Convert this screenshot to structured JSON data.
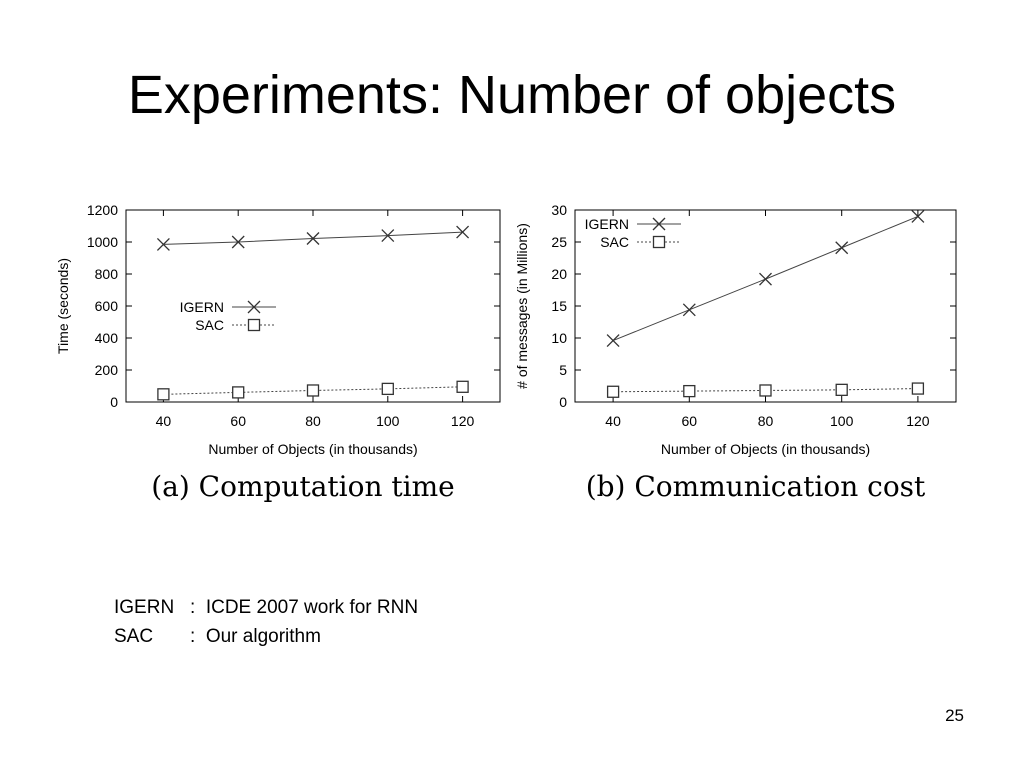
{
  "slide": {
    "title": "Experiments: Number of objects",
    "page_number": "25"
  },
  "notes": [
    {
      "term": "IGERN",
      "desc": ":  ICDE 2007 work for RNN"
    },
    {
      "term": "SAC",
      "desc": ":  Our algorithm"
    }
  ],
  "colors": {
    "series_line": "#444444",
    "marker": "#333333"
  },
  "chart_data": [
    {
      "type": "line",
      "caption": "(a) Computation time",
      "xlabel": "Number of Objects (in thousands)",
      "ylabel": "Time (seconds)",
      "x": [
        40,
        60,
        80,
        100,
        120
      ],
      "xlim": [
        30,
        130
      ],
      "ylim": [
        0,
        1200
      ],
      "xticks": [
        40,
        60,
        80,
        100,
        120
      ],
      "yticks": [
        0,
        200,
        400,
        600,
        800,
        1000,
        1200
      ],
      "legend_position": "center-left",
      "series": [
        {
          "name": "IGERN",
          "marker": "x",
          "line": "solid",
          "values": [
            985,
            1000,
            1022,
            1040,
            1062
          ]
        },
        {
          "name": "SAC",
          "marker": "square",
          "line": "dotted",
          "values": [
            48,
            60,
            72,
            82,
            95
          ]
        }
      ]
    },
    {
      "type": "line",
      "caption": "(b) Communication cost",
      "xlabel": "Number of Objects (in thousands)",
      "ylabel": "# of messages (in Millions)",
      "x": [
        40,
        60,
        80,
        100,
        120
      ],
      "xlim": [
        30,
        130
      ],
      "ylim": [
        0,
        30
      ],
      "xticks": [
        40,
        60,
        80,
        100,
        120
      ],
      "yticks": [
        0,
        5,
        10,
        15,
        20,
        25,
        30
      ],
      "legend_position": "top-left",
      "series": [
        {
          "name": "IGERN",
          "marker": "x",
          "line": "solid",
          "values": [
            9.6,
            14.4,
            19.2,
            24.1,
            29.0
          ]
        },
        {
          "name": "SAC",
          "marker": "square",
          "line": "dotted",
          "values": [
            1.6,
            1.7,
            1.8,
            1.9,
            2.1
          ]
        }
      ]
    }
  ]
}
